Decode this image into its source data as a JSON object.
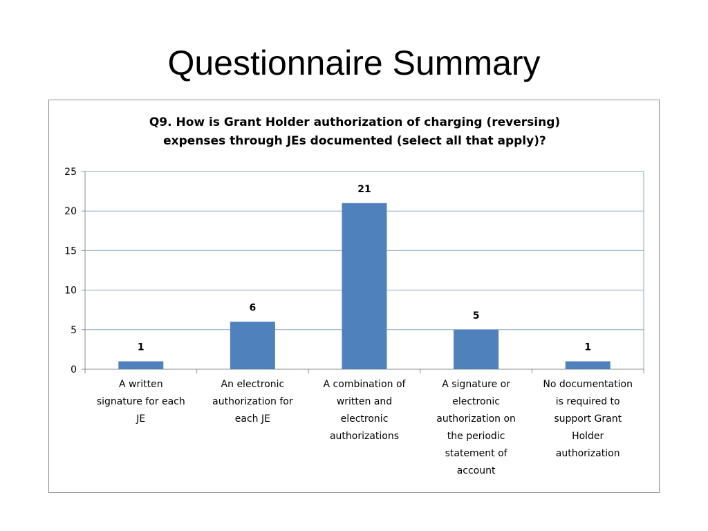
{
  "slide": {
    "title": "Questionnaire Summary"
  },
  "chart_data": {
    "type": "bar",
    "title_lines": [
      "Q9. How is Grant Holder authorization of charging (reversing)",
      "expenses through JEs documented (select all that apply)?"
    ],
    "categories": [
      [
        "A written",
        "signature for each",
        "JE"
      ],
      [
        "An electronic",
        "authorization for",
        "each JE"
      ],
      [
        "A combination of",
        "written and",
        "electronic",
        "authorizations"
      ],
      [
        "A signature or",
        "electronic",
        "authorization on",
        "the periodic",
        "statement of",
        "account"
      ],
      [
        "No documentation",
        "is required to",
        "support Grant",
        "Holder",
        "authorization"
      ]
    ],
    "values": [
      1,
      6,
      21,
      5,
      1
    ],
    "data_labels": [
      "1",
      "6",
      "21",
      "5",
      "1"
    ],
    "y_ticks": [
      0,
      5,
      10,
      15,
      20,
      25
    ],
    "ylim": [
      0,
      25
    ],
    "grid": true,
    "legend": "none",
    "bar_color": "#4f81bd",
    "grid_color": "#8aa6cc"
  }
}
